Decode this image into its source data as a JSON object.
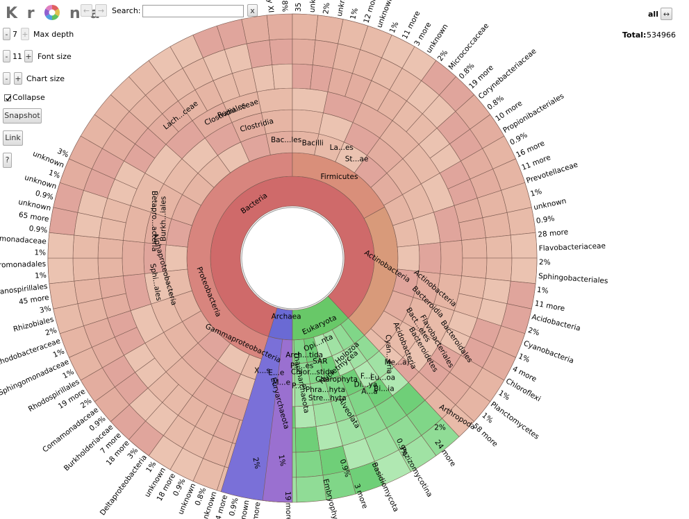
{
  "logo": {
    "letters": [
      "K",
      "r",
      "",
      "n",
      "a"
    ]
  },
  "nav": {
    "back": "←",
    "forward": "→"
  },
  "search": {
    "label": "Search:",
    "value": "",
    "clear": "x"
  },
  "controls": {
    "max_depth": {
      "minus": "-",
      "value": "7",
      "plus": "+",
      "label": "Max depth"
    },
    "font_size": {
      "minus": "-",
      "value": "11",
      "plus": "+",
      "label": "Font size"
    },
    "chart_size": {
      "minus": "-",
      "plus": "+",
      "label": "Chart size"
    },
    "collapse": {
      "label": "Collapse",
      "checked": true
    },
    "snapshot": "Snapshot",
    "link": "Link",
    "help": "?"
  },
  "root": {
    "label": "all",
    "swap": "↔",
    "total_label": "Total:",
    "total_value": "534966"
  },
  "chart_data": {
    "type": "sunburst",
    "center": "all",
    "level1": [
      {
        "name": "Bacteria",
        "color": "#cf6a6a"
      },
      {
        "name": "Archaea",
        "color": "#6a6ad4"
      },
      {
        "name": "Eukaryota",
        "color": "#68c868"
      }
    ],
    "labels": [
      "Bacteria",
      "Firmicutes",
      "Bacilli",
      "Clostridia",
      "Clostridiales",
      "Bac...les",
      "La...es",
      "St...ae",
      "Lach...ceae",
      "Rumi...ceae",
      "Actinobacteria",
      "Actinobacteria",
      "Bacteroidetes",
      "Bacteroidia",
      "Bacteroidales",
      "Flavobacteriales",
      "Bact...etes",
      "Acidobacteria",
      "Cyan...eria",
      "Proteobacteria",
      "Gammaproteobacteria",
      "Alphaproteobacteria",
      "Betapro...acteria",
      "Burkh...iales",
      "Sphi...ales",
      "X...s",
      "E...e",
      "Ps...es",
      "M...e",
      "P...e",
      "Archaea",
      "Euryarchaeota",
      "Thaumarchaeota",
      "Eukaryota",
      "Opi...nta",
      "Holozoa",
      "Arch...tida",
      "SAR",
      "Nucletmycea",
      "Chlor...stida",
      "Charophyta",
      "Phra...hyta",
      "Stre...hyta",
      "Alveolata",
      "F...i",
      "Me...a)",
      "Eu...oa",
      "Di...ya",
      "A...a",
      "Bi...ia",
      "Arthropoda",
      "2%",
      "24 more",
      "Pezizomycotina",
      "Basidiomycota",
      "0.9%",
      "3 more",
      "Embryophyta",
      "0.9%",
      "19 more",
      "1%",
      "2%",
      "Family XI",
      "0.8%",
      "35 more",
      "unknown",
      "2%",
      "unknown",
      "1%",
      "12 more",
      "unknown",
      "1%",
      "11 more",
      "3 more",
      "unknown",
      "2%",
      "Micrococcaceae",
      "0.8%",
      "19 more",
      "Corynebacteriaceae",
      "0.8%",
      "10 more",
      "Propionibacteriales",
      "0.9%",
      "16 more",
      "11 more",
      "Prevotellaceae",
      "1%",
      "unknown",
      "0.9%",
      "28 more",
      "Flavobacteriaceae",
      "2%",
      "Sphingobacteriales",
      "1%",
      "11 more",
      "Acidobacteria",
      "2%",
      "Cyanobacteria",
      "1%",
      "4 more",
      "Chloroflexi",
      "1%",
      "Planctomycetes",
      "1%",
      "58 more",
      "46 more",
      "unknown",
      "0.9%",
      "74 more",
      "unknown",
      "0.8%",
      "unknown",
      "0.9%",
      "18 more",
      "unknown",
      "1%",
      "Deltaproteobacteria",
      "3%",
      "18 more",
      "7 more",
      "Burkholderiaceae",
      "0.9%",
      "Comamonadaceae",
      "2%",
      "19 more",
      "Rhodospirillales",
      "1%",
      "Sphingomonadaceae",
      "1%",
      "Rhodobacteraceae",
      "2%",
      "Rhizobiales",
      "3%",
      "45 more",
      "Oceanospirillales",
      "1%",
      "Alteromonadales",
      "1%",
      "Xanthomonadaceae",
      "0.9%",
      "65 more",
      "unknown",
      "0.9%",
      "unknown",
      "1%",
      "unknown",
      "3%"
    ]
  }
}
